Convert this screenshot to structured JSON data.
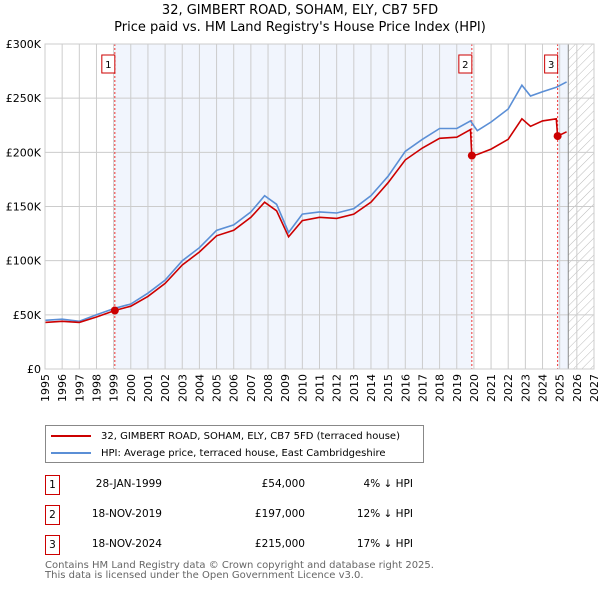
{
  "title": "32, GIMBERT ROAD, SOHAM, ELY, CB7 5FD",
  "subtitle": "Price paid vs. HM Land Registry's House Price Index (HPI)",
  "chart_data": {
    "type": "line",
    "title": "32, GIMBERT ROAD, SOHAM, ELY, CB7 5FD",
    "subtitle": "Price paid vs. HM Land Registry's House Price Index (HPI)",
    "xlim": [
      1995,
      2027
    ],
    "ylim": [
      0,
      300000
    ],
    "x_ticks": [
      "1995",
      "1996",
      "1997",
      "1998",
      "1999",
      "2000",
      "2001",
      "2002",
      "2003",
      "2004",
      "2005",
      "2006",
      "2007",
      "2008",
      "2009",
      "2010",
      "2011",
      "2012",
      "2013",
      "2014",
      "2015",
      "2016",
      "2017",
      "2018",
      "2019",
      "2020",
      "2021",
      "2022",
      "2023",
      "2024",
      "2025",
      "2026",
      "2027"
    ],
    "y_ticks": [
      {
        "v": 0,
        "label": "£0"
      },
      {
        "v": 50000,
        "label": "£50K"
      },
      {
        "v": 100000,
        "label": "£100K"
      },
      {
        "v": 150000,
        "label": "£150K"
      },
      {
        "v": 200000,
        "label": "£200K"
      },
      {
        "v": 250000,
        "label": "£250K"
      },
      {
        "v": 300000,
        "label": "£300K"
      }
    ],
    "grid": true,
    "series": [
      {
        "name": "32, GIMBERT ROAD, SOHAM, ELY, CB7 5FD (terraced house)",
        "color": "#cc0000",
        "x": [
          1995,
          1996,
          1997,
          1998,
          1999.07,
          2000,
          2001,
          2002,
          2003,
          2004,
          2005,
          2006,
          2007,
          2007.8,
          2008.5,
          2009.2,
          2010,
          2011,
          2012,
          2013,
          2014,
          2015,
          2016,
          2017,
          2018,
          2019,
          2019.8,
          2019.88,
          2020.2,
          2021,
          2022,
          2022.8,
          2023.3,
          2024,
          2024.8,
          2024.88,
          2025.4
        ],
        "y": [
          43000,
          44000,
          43000,
          48000,
          54000,
          58000,
          67000,
          79000,
          96000,
          108000,
          123000,
          128000,
          140000,
          154000,
          146000,
          122000,
          137000,
          140000,
          139000,
          143000,
          154000,
          172000,
          193000,
          204000,
          213000,
          214000,
          221000,
          197000,
          198000,
          203000,
          212000,
          231000,
          224000,
          229000,
          231000,
          215000,
          219000
        ]
      },
      {
        "name": "HPI: Average price, terraced house, East Cambridgeshire",
        "color": "#5b8fd6",
        "x": [
          1995,
          1996,
          1997,
          1998,
          1999.07,
          2000,
          2001,
          2002,
          2003,
          2004,
          2005,
          2006,
          2007,
          2007.8,
          2008.5,
          2009.2,
          2010,
          2011,
          2012,
          2013,
          2014,
          2015,
          2016,
          2017,
          2018,
          2019,
          2019.8,
          2020.2,
          2021,
          2022,
          2022.8,
          2023.3,
          2024,
          2024.8,
          2025.4
        ],
        "y": [
          45000,
          46000,
          44000,
          50000,
          56000,
          60000,
          70000,
          82000,
          100000,
          112000,
          128000,
          133000,
          145000,
          160000,
          152000,
          126000,
          143000,
          145000,
          144000,
          148000,
          160000,
          178000,
          201000,
          212000,
          222000,
          222000,
          229000,
          220000,
          228000,
          240000,
          262000,
          252000,
          256000,
          260000,
          265000
        ]
      }
    ],
    "sales": [
      {
        "label": "1",
        "x": 1999.07,
        "y": 54000
      },
      {
        "label": "2",
        "x": 2019.88,
        "y": 197000
      },
      {
        "label": "3",
        "x": 2024.88,
        "y": 215000
      }
    ],
    "shaded_ranges": [
      [
        1999.07,
        2019.88
      ],
      [
        2024.88,
        2025.5
      ]
    ],
    "hatched_from": 2025.5,
    "legend_position": "below"
  },
  "legend": {
    "property": "32, GIMBERT ROAD, SOHAM, ELY, CB7 5FD (terraced house)",
    "hpi": "HPI: Average price, terraced house, East Cambridgeshire"
  },
  "transactions": [
    {
      "num": "1",
      "date": "28-JAN-1999",
      "price": "£54,000",
      "hpi": "4% ↓ HPI"
    },
    {
      "num": "2",
      "date": "18-NOV-2019",
      "price": "£197,000",
      "hpi": "12% ↓ HPI"
    },
    {
      "num": "3",
      "date": "18-NOV-2024",
      "price": "£215,000",
      "hpi": "17% ↓ HPI"
    }
  ],
  "footer": {
    "line1": "Contains HM Land Registry data © Crown copyright and database right 2025.",
    "line2": "This data is licensed under the Open Government Licence v3.0."
  }
}
